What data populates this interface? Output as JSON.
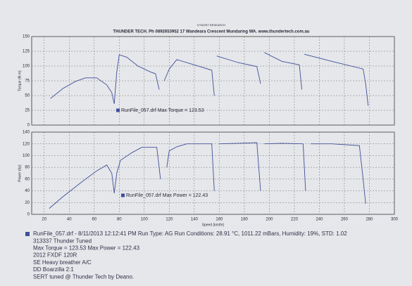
{
  "header": {
    "small": "DYNORT RESEARCH",
    "title": "THUNDER TECH.   Ph 0892653952   17 Wandeara Crescent Mundaring WA.   www.thundertech.com.au"
  },
  "chart_data": [
    {
      "type": "line",
      "ylabel": "Torque (N·m)",
      "color": "#3f4f9a",
      "grid": true,
      "xlim": [
        10,
        300
      ],
      "xticks": [
        20,
        40,
        60,
        80,
        100,
        120,
        140,
        160,
        180,
        200,
        220,
        240,
        260,
        280,
        300
      ],
      "ylim": [
        0,
        150
      ],
      "yticks": [
        0,
        25,
        50,
        75,
        100,
        125,
        150
      ],
      "x": [
        25,
        35,
        45,
        53,
        62,
        70,
        74,
        76,
        78,
        80,
        86,
        95,
        105,
        109,
        112,
        113,
        116,
        120,
        126,
        140,
        154,
        156,
        157,
        158,
        175,
        190,
        193,
        195,
        196,
        210,
        224,
        226,
        227,
        228,
        250,
        275,
        277,
        279
      ],
      "series": [
        {
          "name": "RunFile_057.drf Max Torque = 123.53",
          "values": [
            45,
            62,
            74,
            80,
            80,
            68,
            55,
            36,
            90,
            119,
            115,
            100,
            90,
            87,
            60,
            null,
            75,
            95,
            111,
            102,
            93,
            50,
            null,
            117,
            106,
            99,
            70,
            null,
            123,
            108,
            102,
            60,
            null,
            120,
            108,
            95,
            70,
            33
          ]
        }
      ]
    },
    {
      "type": "line",
      "ylabel": "Power (hp)",
      "xlabel": "Speed (km/hr)",
      "color": "#3f4f9a",
      "grid": true,
      "xlim": [
        10,
        300
      ],
      "xticks": [
        20,
        40,
        60,
        80,
        100,
        120,
        140,
        160,
        180,
        200,
        220,
        240,
        260,
        280,
        300
      ],
      "ylim": [
        0,
        140
      ],
      "yticks": [
        0,
        20,
        40,
        60,
        80,
        100,
        120,
        140
      ],
      "x": [
        24,
        35,
        50,
        62,
        70,
        74,
        76,
        78,
        81,
        90,
        98,
        110,
        113,
        115,
        118,
        120,
        126,
        134,
        154,
        156,
        157,
        160,
        175,
        190,
        193,
        195,
        196,
        210,
        227,
        229,
        231,
        233,
        250,
        272,
        275,
        277
      ],
      "series": [
        {
          "name": "RunFile_057.drf Max Power = 122.43",
          "values": [
            10,
            30,
            55,
            74,
            84,
            70,
            36,
            70,
            92,
            105,
            114,
            114,
            60,
            null,
            80,
            108,
            115,
            120,
            120,
            40,
            null,
            120,
            121,
            122,
            40,
            null,
            120,
            121,
            120,
            40,
            null,
            120,
            120,
            117,
            60,
            18
          ]
        }
      ]
    }
  ],
  "footer": {
    "lines": [
      "RunFile_057.drf - 8/11/2013 12:12:41 PM  Run Type: AG  Run Conditions: 28.91 °C, 1011.22 mBars,  Humidity: 19%, STD: 1.02",
      "313337 Thunder Tuned",
      "Max Torque = 123.53  Max Power = 122.43",
      "2012 FXDF 120R",
      "SE Heavy breather A/C",
      "DD Boarzilla 2:1",
      "SERT tuned @ Thunder Tech by Deano."
    ]
  }
}
